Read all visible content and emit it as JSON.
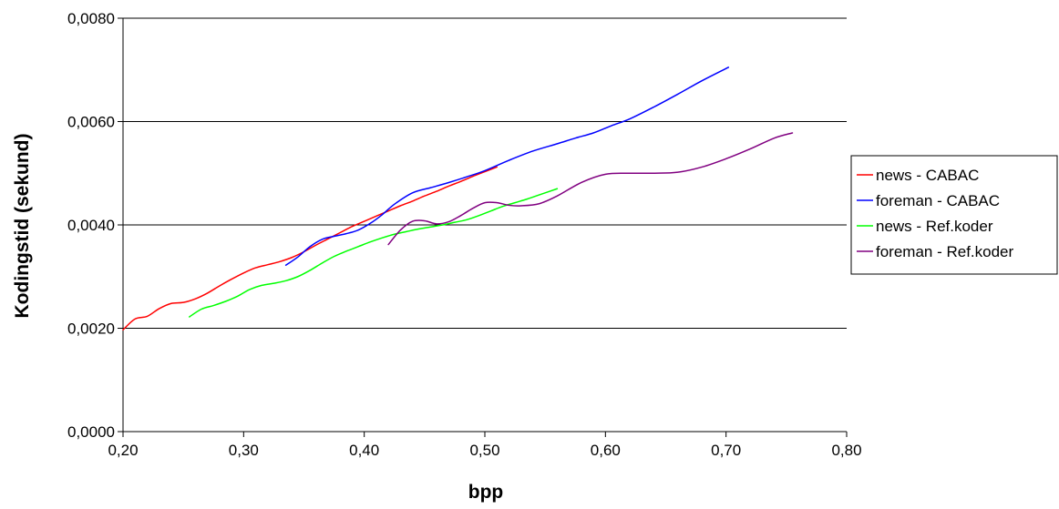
{
  "chart_data": {
    "type": "line",
    "title": "",
    "xlabel": "bpp",
    "ylabel": "Kodingstid (sekund)",
    "xlim": [
      0.2,
      0.8
    ],
    "ylim": [
      0.0,
      0.008
    ],
    "x_ticks": [
      0.2,
      0.3,
      0.4,
      0.5,
      0.6,
      0.7,
      0.8
    ],
    "y_ticks": [
      0.0,
      0.002,
      0.004,
      0.006,
      0.008
    ],
    "x_tick_labels": [
      "0,20",
      "0,30",
      "0,40",
      "0,50",
      "0,60",
      "0,70",
      "0,80"
    ],
    "y_tick_labels": [
      "0,0000",
      "0,0020",
      "0,0040",
      "0,0060",
      "0,0080"
    ],
    "grid": "horizontal",
    "legend_position": "right",
    "series": [
      {
        "name": "news - CABAC",
        "color": "#ff0000",
        "x": [
          0.2,
          0.21,
          0.22,
          0.23,
          0.24,
          0.25,
          0.26,
          0.27,
          0.28,
          0.29,
          0.3,
          0.31,
          0.32,
          0.33,
          0.34,
          0.35,
          0.36,
          0.37,
          0.38,
          0.39,
          0.4,
          0.41,
          0.42,
          0.43,
          0.44,
          0.45,
          0.46,
          0.47,
          0.48,
          0.49,
          0.5,
          0.51
        ],
        "y": [
          0.00197,
          0.00218,
          0.00223,
          0.00238,
          0.00248,
          0.0025,
          0.00257,
          0.00268,
          0.00282,
          0.00295,
          0.00307,
          0.00317,
          0.00323,
          0.00329,
          0.00337,
          0.00348,
          0.00361,
          0.00373,
          0.00385,
          0.00397,
          0.00407,
          0.00417,
          0.00427,
          0.00437,
          0.00446,
          0.00456,
          0.00465,
          0.00475,
          0.00484,
          0.00494,
          0.00503,
          0.00512
        ]
      },
      {
        "name": "foreman - CABAC",
        "color": "#0000ff",
        "x": [
          0.335,
          0.345,
          0.355,
          0.365,
          0.375,
          0.385,
          0.395,
          0.405,
          0.415,
          0.425,
          0.44,
          0.455,
          0.47,
          0.485,
          0.5,
          0.52,
          0.54,
          0.56,
          0.575,
          0.59,
          0.605,
          0.62,
          0.64,
          0.66,
          0.68,
          0.702
        ],
        "y": [
          0.00322,
          0.00338,
          0.00358,
          0.00372,
          0.00378,
          0.00383,
          0.0039,
          0.00403,
          0.0042,
          0.0044,
          0.00462,
          0.00472,
          0.00482,
          0.00493,
          0.00505,
          0.00525,
          0.00543,
          0.00557,
          0.00568,
          0.00578,
          0.00592,
          0.00605,
          0.00628,
          0.00653,
          0.00679,
          0.00705
        ]
      },
      {
        "name": "news - Ref.koder",
        "color": "#00ff00",
        "x": [
          0.255,
          0.265,
          0.275,
          0.285,
          0.295,
          0.305,
          0.315,
          0.325,
          0.335,
          0.345,
          0.355,
          0.365,
          0.375,
          0.385,
          0.395,
          0.405,
          0.415,
          0.425,
          0.435,
          0.445,
          0.455,
          0.465,
          0.475,
          0.485,
          0.495,
          0.505,
          0.515,
          0.525,
          0.535,
          0.545,
          0.56
        ],
        "y": [
          0.00222,
          0.00237,
          0.00244,
          0.00252,
          0.00262,
          0.00275,
          0.00283,
          0.00287,
          0.00292,
          0.003,
          0.00312,
          0.00326,
          0.00339,
          0.00349,
          0.00358,
          0.00367,
          0.00375,
          0.00382,
          0.00387,
          0.00392,
          0.00396,
          0.004,
          0.00405,
          0.0041,
          0.00418,
          0.00427,
          0.00436,
          0.00443,
          0.0045,
          0.00458,
          0.0047
        ]
      },
      {
        "name": "foreman - Ref.koder",
        "color": "#800080",
        "x": [
          0.42,
          0.43,
          0.44,
          0.45,
          0.46,
          0.47,
          0.48,
          0.49,
          0.5,
          0.51,
          0.52,
          0.53,
          0.545,
          0.56,
          0.58,
          0.6,
          0.62,
          0.64,
          0.66,
          0.68,
          0.7,
          0.72,
          0.74,
          0.755
        ],
        "y": [
          0.00362,
          0.0039,
          0.00407,
          0.00408,
          0.00402,
          0.00406,
          0.00418,
          0.00432,
          0.00443,
          0.00443,
          0.00438,
          0.00437,
          0.00441,
          0.00456,
          0.00482,
          0.00498,
          0.005,
          0.005,
          0.00502,
          0.00512,
          0.00528,
          0.00547,
          0.00568,
          0.00578
        ]
      }
    ]
  }
}
